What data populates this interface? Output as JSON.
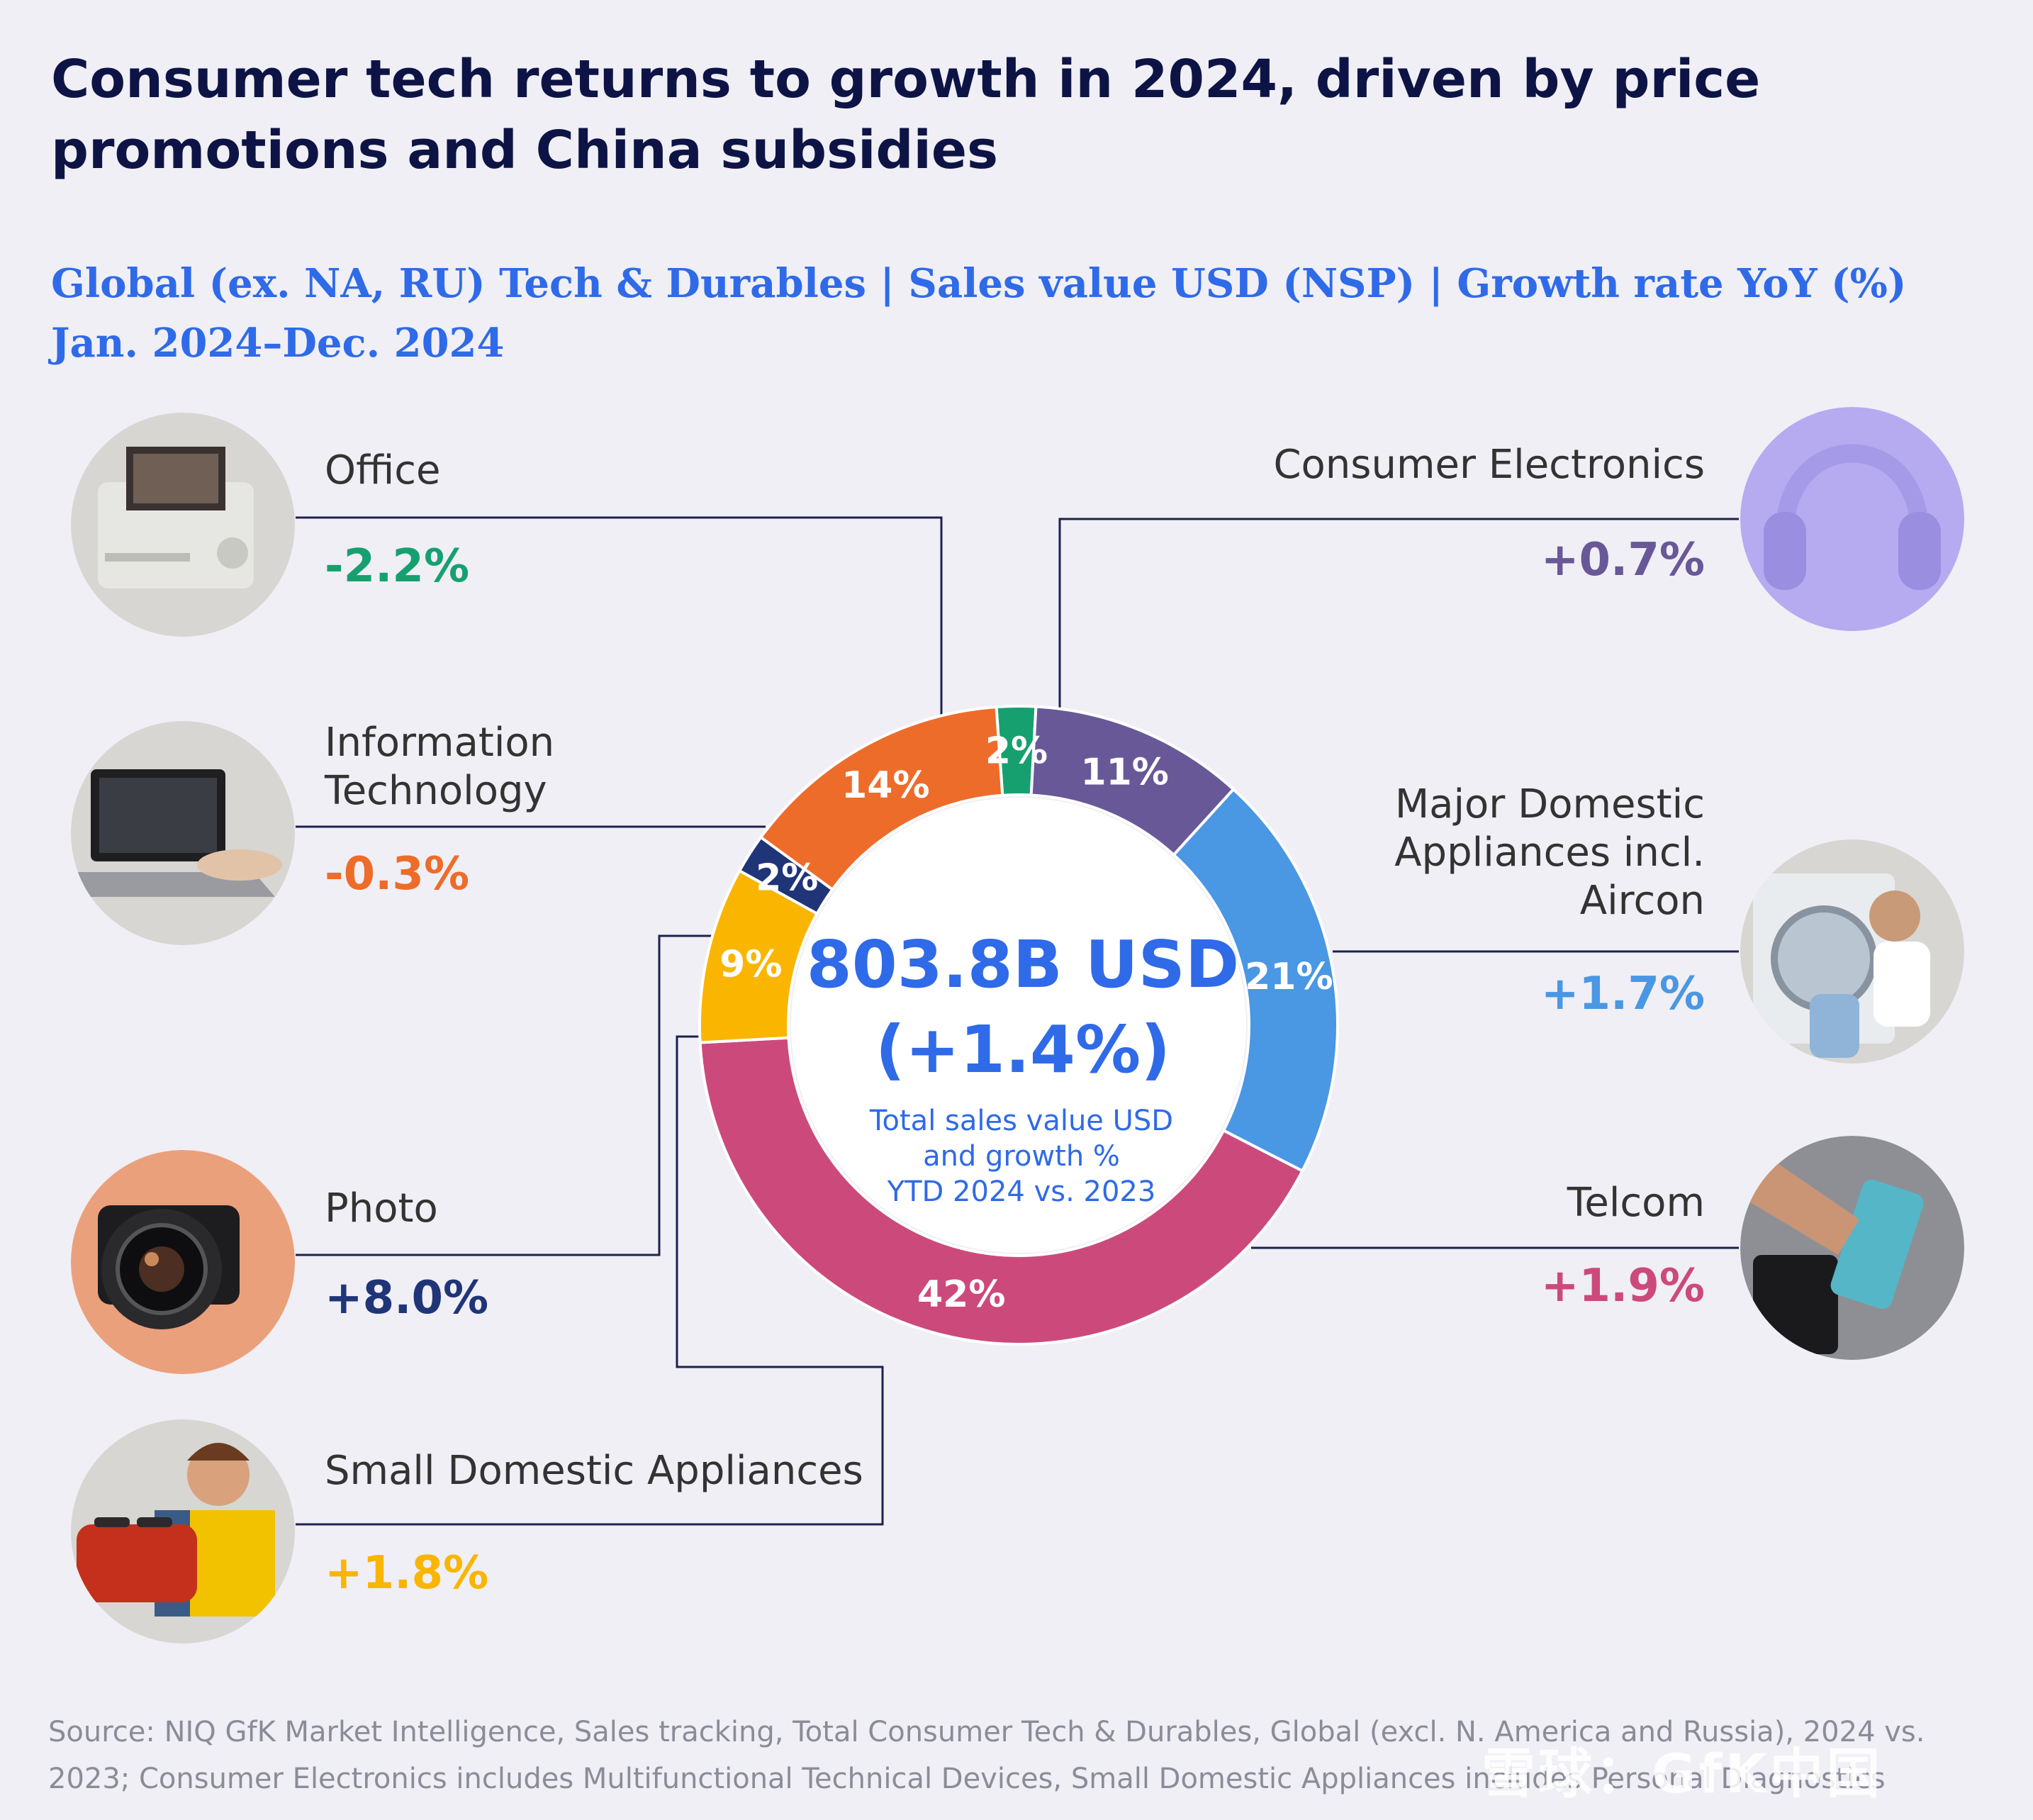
{
  "title": "Consumer tech returns to growth in 2024, driven by price promotions and China subsidies",
  "subtitle_line1": "Global (ex. NA, RU) Tech & Durables | Sales value USD (NSP) | Growth rate YoY (%)",
  "subtitle_line2": "Jan. 2024–Dec. 2024",
  "source": "Source: NIQ GfK Market Intelligence, Sales tracking, Total Consumer Tech & Durables, Global (excl. N. America and Russia), 2024 vs. 2023; Consumer Electronics includes Multifunctional Technical Devices, Small Domestic Appliances includes Personal Diagnostics",
  "watermark": "雪球：GfK中国",
  "chart_data": {
    "type": "pie",
    "variant": "donut",
    "center": {
      "total": "803.8B USD",
      "growth": "(+1.4%)",
      "caption_lines": [
        "Total sales value USD",
        "and growth %",
        "YTD 2024 vs. 2023"
      ]
    },
    "slices": [
      {
        "name": "Office",
        "lines": [
          "Office"
        ],
        "share": 2,
        "share_label": "2%",
        "growth": -2.2,
        "growth_label": "-2.2%",
        "color": "#16a070",
        "photo": "office-printer-photo",
        "photo_icon": "printer-icon"
      },
      {
        "name": "Consumer Electronics",
        "lines": [
          "Consumer Electronics"
        ],
        "share": 11,
        "share_label": "11%",
        "growth": 0.7,
        "growth_label": "+0.7%",
        "color": "#695898",
        "photo": "headphones-photo",
        "photo_icon": "headphones-icon"
      },
      {
        "name": "Major Domestic Appliances incl. Aircon",
        "lines": [
          "Major Domestic",
          "Appliances incl.",
          "Aircon"
        ],
        "share": 21,
        "share_label": "21%",
        "growth": 1.7,
        "growth_label": "+1.7%",
        "color": "#4a97e3",
        "photo": "washing-machine-photo",
        "photo_icon": "washing-machine-icon"
      },
      {
        "name": "Telcom",
        "lines": [
          "Telcom"
        ],
        "share": 42,
        "share_label": "42%",
        "growth": 1.9,
        "growth_label": "+1.9%",
        "color": "#cc4a7b",
        "photo": "smartphone-photo",
        "photo_icon": "smartphone-icon"
      },
      {
        "name": "Small Domestic Appliances",
        "lines": [
          "Small Domestic Appliances"
        ],
        "share": 9,
        "share_label": "9%",
        "growth": 1.8,
        "growth_label": "+1.8%",
        "color": "#f9b500",
        "photo": "toaster-photo",
        "photo_icon": "toaster-icon"
      },
      {
        "name": "Photo",
        "lines": [
          "Photo"
        ],
        "share": 2,
        "share_label": "2%",
        "growth": 8.0,
        "growth_label": "+8.0%",
        "color": "#1f3578",
        "photo": "camera-photo",
        "photo_icon": "camera-icon"
      },
      {
        "name": "Information Technology",
        "lines": [
          "Information",
          "Technology"
        ],
        "share": 14,
        "share_label": "14%",
        "growth": -0.3,
        "growth_label": "-0.3%",
        "color": "#ed6c2a",
        "photo": "laptop-photo",
        "photo_icon": "laptop-icon"
      }
    ]
  }
}
